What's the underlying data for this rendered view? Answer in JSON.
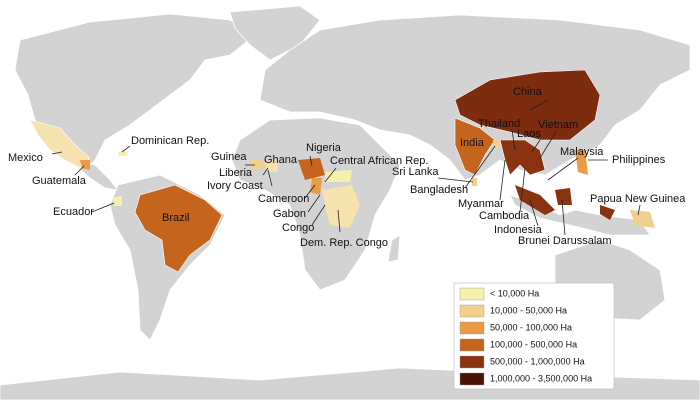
{
  "labels": [
    "China",
    "Thailand",
    "Laos",
    "Vietnam",
    "Malaysia",
    "India",
    "Philippines",
    "Sri Lanka",
    "Bangladesh",
    "Myanmar",
    "Cambodia",
    "Indonesia",
    "Brunei Darussalam",
    "Papua New Guinea",
    "Nigeria",
    "Central African Rep.",
    "Guinea",
    "Ghana",
    "Liberia",
    "Ivory Coast",
    "Cameroon",
    "Gabon",
    "Congo",
    "Dem. Rep. Congo",
    "Dominican Rep.",
    "Mexico",
    "Guatemala",
    "Ecuador",
    "Brazil"
  ],
  "legend": [
    {
      "label": "< 10,000 Ha",
      "color": "#f6f0ad"
    },
    {
      "label": "10,000 - 50,000 Ha",
      "color": "#f1cf8c"
    },
    {
      "label": "50,000 - 100,000 Ha",
      "color": "#eb9a45"
    },
    {
      "label": "100,000 - 500,000 Ha",
      "color": "#c5651d"
    },
    {
      "label": "500,000 - 1,000,000 Ha",
      "color": "#8a3311"
    },
    {
      "label": "1,000,000 - 3,500,000 Ha",
      "color": "#4a1206"
    }
  ]
}
